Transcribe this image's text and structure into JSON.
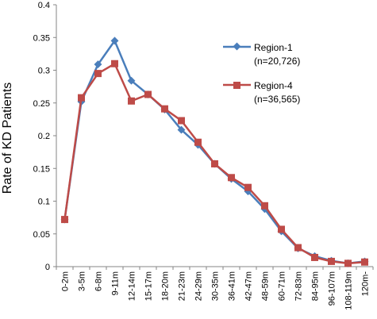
{
  "chart_data": {
    "type": "line",
    "title": "",
    "xlabel": "",
    "ylabel": "Rate of KD Patients",
    "ylim": [
      0,
      0.4
    ],
    "yticks": [
      0,
      0.05,
      0.1,
      0.15,
      0.2,
      0.25,
      0.3,
      0.35,
      0.4
    ],
    "ytick_labels": [
      "0",
      "0.05",
      "0.1",
      "0.15",
      "0.2",
      "0.25",
      "0.3",
      "0.35",
      "0.4"
    ],
    "grid": false,
    "legend_position": "top-right",
    "categories": [
      "0-2m",
      "3-5m",
      "6-8m",
      "9-11m",
      "12-14m",
      "15-17m",
      "18-20m",
      "21-23m",
      "24-29m",
      "30-35m",
      "36-41m",
      "42-47m",
      "48-59m",
      "60-71m",
      "72-83m",
      "84-95m",
      "96-107m",
      "108-119m",
      "120m-"
    ],
    "series": [
      {
        "name": "Region-1",
        "sublabel": "(n=20,726)",
        "color": "#4a7ebb",
        "marker": "diamond",
        "values": [
          0.072,
          0.252,
          0.309,
          0.345,
          0.284,
          0.263,
          0.24,
          0.209,
          0.186,
          0.157,
          0.134,
          0.115,
          0.088,
          0.054,
          0.028,
          0.016,
          0.009,
          0.005,
          0.008
        ]
      },
      {
        "name": "Region-4",
        "sublabel": "(n=36,565)",
        "color": "#be4b48",
        "marker": "square",
        "values": [
          0.072,
          0.258,
          0.295,
          0.31,
          0.253,
          0.263,
          0.241,
          0.223,
          0.19,
          0.157,
          0.136,
          0.121,
          0.093,
          0.057,
          0.029,
          0.014,
          0.008,
          0.005,
          0.007
        ]
      }
    ]
  }
}
